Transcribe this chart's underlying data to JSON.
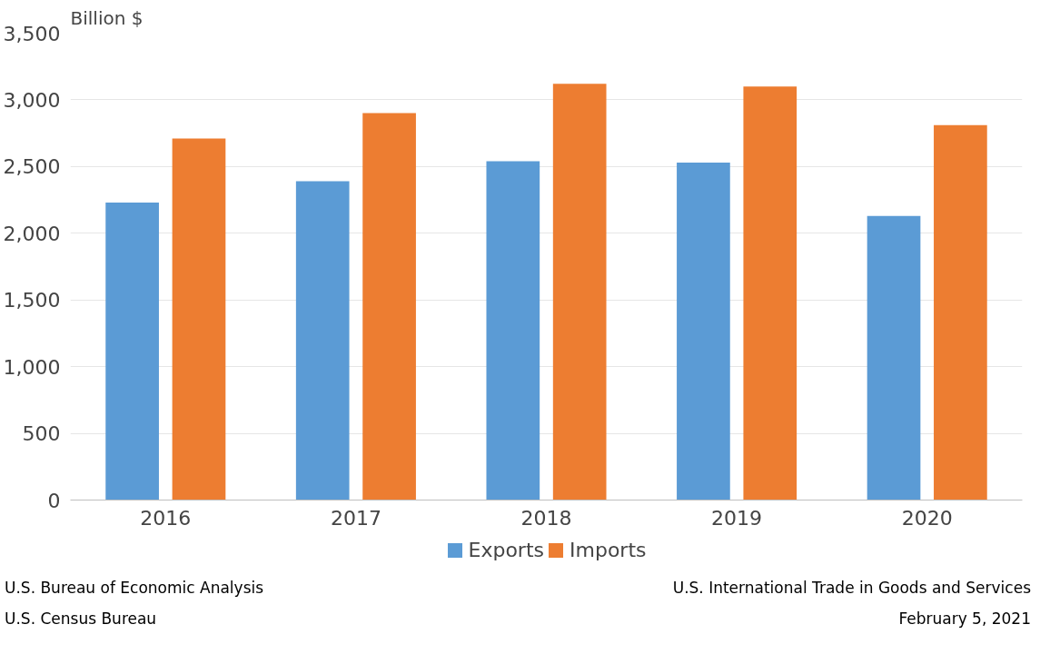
{
  "chart_data": {
    "type": "bar",
    "ylabel": "Billion $",
    "categories": [
      "2016",
      "2017",
      "2018",
      "2019",
      "2020"
    ],
    "series": [
      {
        "name": "Exports",
        "color": "#5b9bd5",
        "values": [
          2230,
          2390,
          2540,
          2530,
          2130
        ]
      },
      {
        "name": "Imports",
        "color": "#ed7d31",
        "values": [
          2710,
          2900,
          3120,
          3100,
          2810
        ]
      }
    ],
    "ylim": [
      0,
      3500
    ],
    "yticks": [
      0,
      {
        "value": 500,
        "label": "500"
      },
      {
        "value": 1000,
        "label": "1,000"
      },
      {
        "value": 1500,
        "label": "1,500"
      },
      {
        "value": 2000,
        "label": "2,000"
      },
      {
        "value": 2500,
        "label": "2,500"
      },
      {
        "value": 3000,
        "label": "3,000"
      },
      {
        "value": 3500,
        "label": "3,500"
      }
    ],
    "grid": "y",
    "legend": "bottom",
    "annotations": [
      "U.S. Bureau of Economic Analysis",
      "U.S. Census Bureau",
      "U.S. International Trade in Goods and Services",
      "February 5, 2021"
    ]
  }
}
